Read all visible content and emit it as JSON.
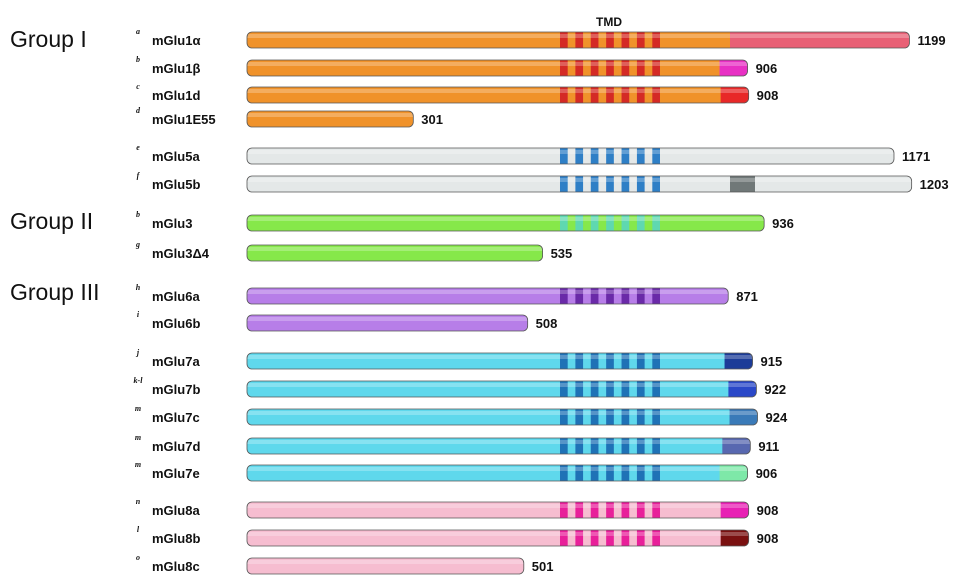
{
  "tmd_label": "TMD",
  "groups": [
    {
      "label": "Group I"
    },
    {
      "label": "Group II"
    },
    {
      "label": "Group III"
    }
  ],
  "colors": {
    "group1": "#f0922a",
    "group1_tmd": "#d42a25",
    "mglu5": "#e4e8e8",
    "mglu5_tmd": "#2f7fc6",
    "mglu3": "#86e84a",
    "mglu3_tmd": "#5fd8b0",
    "mglu6": "#b77ee8",
    "mglu6_tmd": "#6a2aa8",
    "mglu7": "#5fd8ec",
    "mglu7_tmd": "#1f72b6",
    "mglu8": "#f6bdd0",
    "mglu8_tmd": "#e8209a"
  },
  "variants": [
    {
      "name": "mGlu1α",
      "sup": "a",
      "length": 1199,
      "group": 0,
      "color": "#f0922a",
      "tmd": "#d42a25",
      "tail": "#e86075"
    },
    {
      "name": "mGlu1β",
      "sup": "b",
      "length": 906,
      "group": 0,
      "color": "#f0922a",
      "tmd": "#d42a25",
      "tail": "#e830c4"
    },
    {
      "name": "mGlu1d",
      "sup": "c",
      "length": 908,
      "group": 0,
      "color": "#f0922a",
      "tmd": "#d42a25",
      "tail": "#e82828"
    },
    {
      "name": "mGlu1E55",
      "sup": "d",
      "length": 301,
      "group": 0,
      "color": "#f0922a"
    },
    {
      "name": "mGlu5a",
      "sup": "e",
      "length": 1171,
      "group": 0,
      "color": "#e4e8e8",
      "tmd": "#2f7fc6"
    },
    {
      "name": "mGlu5b",
      "sup": "f",
      "length": 1203,
      "group": 0,
      "color": "#e4e8e8",
      "tmd": "#2f7fc6",
      "insert": "#707878"
    },
    {
      "name": "mGlu3",
      "sup": "b",
      "length": 936,
      "group": 1,
      "color": "#86e84a",
      "tmd": "#5fd8b0"
    },
    {
      "name": "mGlu3Δ4",
      "sup": "g",
      "length": 535,
      "group": 1,
      "color": "#86e84a"
    },
    {
      "name": "mGlu6a",
      "sup": "h",
      "length": 871,
      "group": 2,
      "color": "#b77ee8",
      "tmd": "#6a2aa8"
    },
    {
      "name": "mGlu6b",
      "sup": "i",
      "length": 508,
      "group": 2,
      "color": "#b77ee8"
    },
    {
      "name": "mGlu7a",
      "sup": "j",
      "length": 915,
      "group": 2,
      "color": "#5fd8ec",
      "tmd": "#1f72b6",
      "tail": "#1c3c98"
    },
    {
      "name": "mGlu7b",
      "sup": "k-l",
      "length": 922,
      "group": 2,
      "color": "#5fd8ec",
      "tmd": "#1f72b6",
      "tail": "#2a48c8"
    },
    {
      "name": "mGlu7c",
      "sup": "m",
      "length": 924,
      "group": 2,
      "color": "#5fd8ec",
      "tmd": "#1f72b6",
      "tail": "#3a7ab8"
    },
    {
      "name": "mGlu7d",
      "sup": "m",
      "length": 911,
      "group": 2,
      "color": "#5fd8ec",
      "tmd": "#1f72b6",
      "tail": "#5868b0"
    },
    {
      "name": "mGlu7e",
      "sup": "m",
      "length": 906,
      "group": 2,
      "color": "#5fd8ec",
      "tmd": "#1f72b6",
      "tail": "#7ee8a8"
    },
    {
      "name": "mGlu8a",
      "sup": "n",
      "length": 908,
      "group": 2,
      "color": "#f6bdd0",
      "tmd": "#e8209a",
      "tail": "#e820b4"
    },
    {
      "name": "mGlu8b",
      "sup": "l",
      "length": 908,
      "group": 2,
      "color": "#f6bdd0",
      "tmd": "#e8209a",
      "tail": "#7a1010"
    },
    {
      "name": "mGlu8c",
      "sup": "o",
      "length": 501,
      "group": 2,
      "color": "#f6bdd0"
    }
  ]
}
